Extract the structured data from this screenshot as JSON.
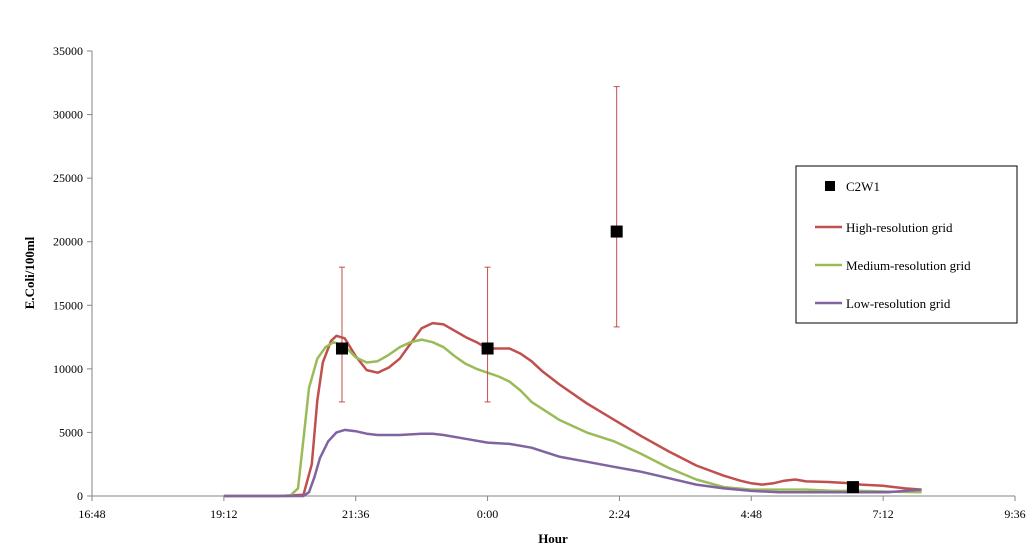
{
  "chart_data": {
    "type": "line",
    "title": "",
    "xlabel": "Hour",
    "ylabel": "E.Coli/100ml",
    "x_unit": "hours since 16:48",
    "xlim": [
      0,
      16.8
    ],
    "ylim": [
      0,
      35000
    ],
    "x_ticks": [
      {
        "pos": 0,
        "label": "16:48"
      },
      {
        "pos": 2.4,
        "label": "19:12"
      },
      {
        "pos": 4.8,
        "label": "21:36"
      },
      {
        "pos": 7.2,
        "label": "0:00"
      },
      {
        "pos": 9.6,
        "label": "2:24"
      },
      {
        "pos": 12.0,
        "label": "4:48"
      },
      {
        "pos": 14.4,
        "label": "7:12"
      },
      {
        "pos": 16.8,
        "label": "9:36"
      }
    ],
    "y_ticks": [
      0,
      5000,
      10000,
      15000,
      20000,
      25000,
      30000,
      35000
    ],
    "grid": false,
    "legend_position": "right",
    "series": [
      {
        "name": "C2W1",
        "kind": "marker",
        "color": "#000000",
        "points": [
          {
            "x": 4.55,
            "y": 11600,
            "err_low": 7400,
            "err_high": 18000
          },
          {
            "x": 7.2,
            "y": 11600,
            "err_low": 7400,
            "err_high": 18000
          },
          {
            "x": 9.55,
            "y": 20800,
            "err_low": 13300,
            "err_high": 32200
          },
          {
            "x": 13.85,
            "y": 700
          }
        ],
        "error_bar_color": "#c0504d"
      },
      {
        "name": "High-resolution grid",
        "kind": "line",
        "color": "#c0504d",
        "x": [
          2.4,
          3.4,
          3.85,
          4.0,
          4.1,
          4.2,
          4.35,
          4.45,
          4.6,
          4.8,
          5.0,
          5.2,
          5.4,
          5.6,
          5.8,
          6.0,
          6.2,
          6.4,
          6.6,
          6.8,
          7.0,
          7.2,
          7.4,
          7.6,
          7.8,
          8.0,
          8.2,
          8.5,
          9.0,
          9.5,
          10.0,
          10.5,
          11.0,
          11.5,
          11.8,
          12.0,
          12.2,
          12.4,
          12.6,
          12.8,
          13.0,
          13.4,
          13.8,
          14.0,
          14.4,
          14.8,
          15.1
        ],
        "y": [
          0,
          0,
          100,
          2500,
          7500,
          10500,
          12200,
          12600,
          12400,
          11000,
          9900,
          9700,
          10100,
          10800,
          12000,
          13200,
          13600,
          13500,
          13000,
          12500,
          12100,
          11600,
          11600,
          11600,
          11200,
          10600,
          9800,
          8800,
          7300,
          6000,
          4700,
          3500,
          2400,
          1600,
          1200,
          1000,
          900,
          1000,
          1200,
          1300,
          1150,
          1100,
          1000,
          900,
          800,
          600,
          500
        ]
      },
      {
        "name": "Medium-resolution grid",
        "kind": "line",
        "color": "#9bbb59",
        "x": [
          2.4,
          3.6,
          3.75,
          3.85,
          3.95,
          4.1,
          4.25,
          4.4,
          4.6,
          4.8,
          5.0,
          5.2,
          5.4,
          5.6,
          5.8,
          6.0,
          6.2,
          6.4,
          6.6,
          6.8,
          7.0,
          7.2,
          7.4,
          7.6,
          7.8,
          8.0,
          8.5,
          9.0,
          9.5,
          10.0,
          10.5,
          11.0,
          11.5,
          12.0,
          12.5,
          13.0,
          13.5,
          14.0,
          14.5,
          15.1
        ],
        "y": [
          0,
          0,
          600,
          4500,
          8500,
          10800,
          11700,
          12100,
          11800,
          10900,
          10500,
          10600,
          11100,
          11700,
          12100,
          12300,
          12100,
          11700,
          11000,
          10400,
          10000,
          9700,
          9400,
          9000,
          8300,
          7400,
          6000,
          5000,
          4300,
          3300,
          2200,
          1300,
          700,
          500,
          500,
          500,
          400,
          400,
          350,
          300
        ]
      },
      {
        "name": "Low-resolution grid",
        "kind": "line",
        "color": "#8064a2",
        "x": [
          2.4,
          3.85,
          3.95,
          4.05,
          4.15,
          4.3,
          4.45,
          4.6,
          4.8,
          5.0,
          5.2,
          5.6,
          6.0,
          6.2,
          6.4,
          6.8,
          7.2,
          7.6,
          8.0,
          8.5,
          9.0,
          9.5,
          10.0,
          10.5,
          11.0,
          11.5,
          12.0,
          12.5,
          13.0,
          13.5,
          14.0,
          14.5,
          15.1
        ],
        "y": [
          0,
          0,
          300,
          1500,
          3000,
          4300,
          5000,
          5200,
          5100,
          4900,
          4800,
          4800,
          4900,
          4900,
          4800,
          4500,
          4200,
          4100,
          3800,
          3100,
          2700,
          2300,
          1900,
          1400,
          900,
          600,
          400,
          300,
          300,
          300,
          300,
          300,
          500
        ]
      }
    ]
  }
}
